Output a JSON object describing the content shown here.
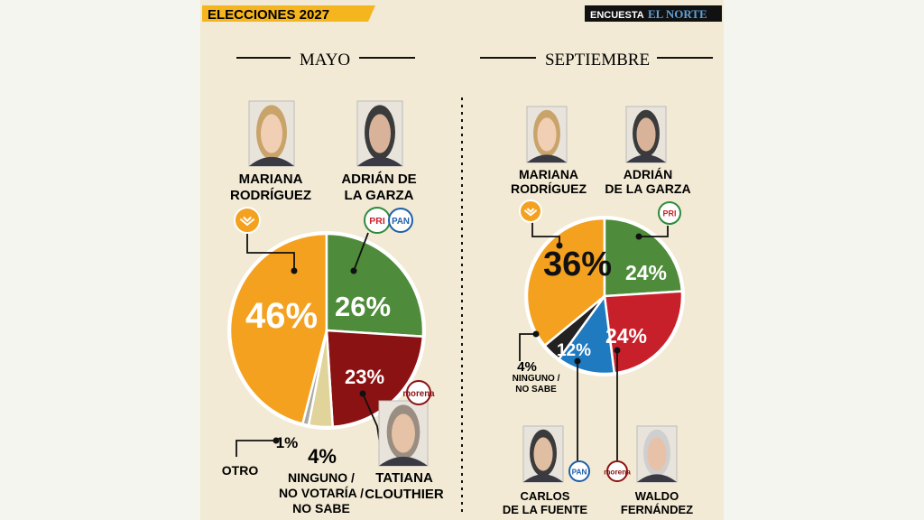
{
  "header": {
    "title": "ELECCIONES 2027",
    "survey_label": "ENCUESTA",
    "newspaper": "EL NORTE"
  },
  "colors": {
    "orange": "#f4a11f",
    "green": "#4e8b3a",
    "darkred": "#8b1212",
    "red": "#c8202a",
    "blue": "#1f7ac0",
    "beige": "#e1d49a",
    "gray": "#a8aaa6",
    "black": "#222222"
  },
  "chart_data": [
    {
      "type": "pie",
      "title": "MAYO",
      "series": [
        {
          "name": "MARIANA RODRÍGUEZ",
          "value": 46,
          "label": "46%",
          "color": "#f4a11f",
          "party_icons": [
            "movimiento-ciudadano-icon"
          ]
        },
        {
          "name": "ADRIÁN DE LA GARZA",
          "value": 26,
          "label": "26%",
          "color": "#4e8b3a",
          "party_icons": [
            "pri-icon",
            "pan-icon"
          ]
        },
        {
          "name": "TATIANA CLOUTHIER",
          "value": 23,
          "label": "23%",
          "color": "#8b1212",
          "party_icons": [
            "morena-icon"
          ]
        },
        {
          "name": "NINGUNO / NO VOTARÍA / NO SABE",
          "value": 4,
          "label": "4%",
          "color": "#e1d49a"
        },
        {
          "name": "OTRO",
          "value": 1,
          "label": "1%",
          "color": "#a8aaa6"
        }
      ]
    },
    {
      "type": "pie",
      "title": "SEPTIEMBRE",
      "series": [
        {
          "name": "MARIANA RODRÍGUEZ",
          "value": 36,
          "label": "36%",
          "color": "#f4a11f",
          "party_icons": [
            "movimiento-ciudadano-icon"
          ]
        },
        {
          "name": "ADRIÁN DE LA GARZA",
          "value": 24,
          "label": "24%",
          "color": "#4e8b3a",
          "party_icons": [
            "pri-icon"
          ]
        },
        {
          "name": "WALDO FERNÁNDEZ",
          "value": 24,
          "label": "24%",
          "color": "#c8202a",
          "party_icons": [
            "morena-icon"
          ]
        },
        {
          "name": "CARLOS DE LA FUENTE",
          "value": 12,
          "label": "12%",
          "color": "#1f7ac0",
          "party_icons": [
            "pan-icon"
          ]
        },
        {
          "name": "NINGUNO / NO SABE",
          "value": 4,
          "label": "4%",
          "color": "#222222"
        }
      ]
    }
  ],
  "party_labels": {
    "pri": "PRI",
    "pan": "PAN",
    "morena": "morena"
  },
  "candidate_names": {
    "mayo_mariana": [
      "MARIANA",
      "RODRÍGUEZ"
    ],
    "mayo_adrian": [
      "ADRIÁN DE",
      "LA GARZA"
    ],
    "mayo_tatiana": [
      "TATIANA",
      "CLOUTHIER"
    ],
    "mayo_ninguno": [
      "NINGUNO /",
      "NO VOTARÍA /",
      "NO SABE"
    ],
    "mayo_otro": [
      "OTRO"
    ],
    "sep_mariana": [
      "MARIANA",
      "RODRÍGUEZ"
    ],
    "sep_adrian": [
      "ADRIÁN",
      "DE LA GARZA"
    ],
    "sep_ninguno": [
      "NINGUNO /",
      "NO SABE"
    ],
    "sep_carlos": [
      "CARLOS",
      "DE LA FUENTE"
    ],
    "sep_waldo": [
      "WALDO",
      "FERNÁNDEZ"
    ]
  }
}
